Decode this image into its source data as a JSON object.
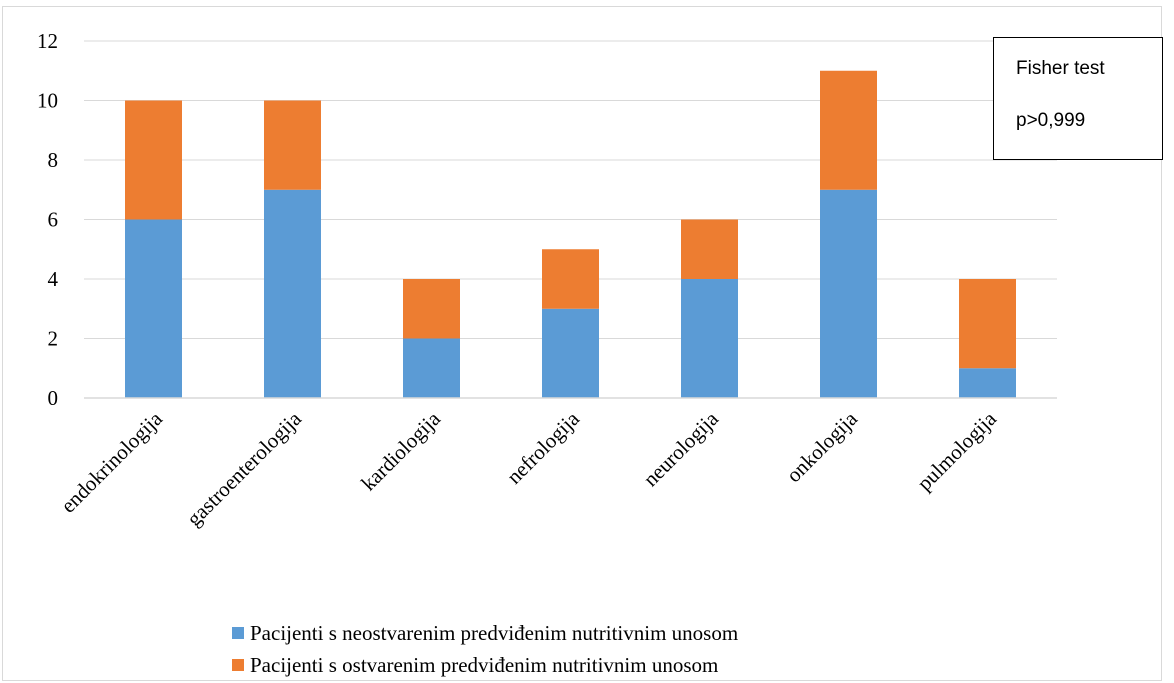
{
  "chart_data": {
    "type": "bar",
    "stacked": true,
    "categories": [
      "endokrinologija",
      "gastroenterologija",
      "kardiologija",
      "nefrologija",
      "neurologija",
      "onkologija",
      "pulmologija"
    ],
    "series": [
      {
        "name": "Pacijenti s neostvarenim predviđenim nutritivnim unosom",
        "values": [
          6,
          7,
          2,
          3,
          4,
          7,
          1
        ],
        "color": "#5b9bd5"
      },
      {
        "name": "Pacijenti s ostvarenim predviđenim nutritivnim unosom",
        "values": [
          4,
          3,
          2,
          2,
          2,
          4,
          3
        ],
        "color": "#ed7d31"
      }
    ],
    "title": "",
    "xlabel": "",
    "ylabel": "",
    "ylim": [
      0,
      12
    ],
    "yticks": [
      0,
      2,
      4,
      6,
      8,
      10,
      12
    ],
    "grid": true,
    "gridColor": "#d9d9d9",
    "legend_position": "bottom",
    "annotation": {
      "lines": [
        "Fisher test",
        "p>0,999"
      ]
    }
  }
}
